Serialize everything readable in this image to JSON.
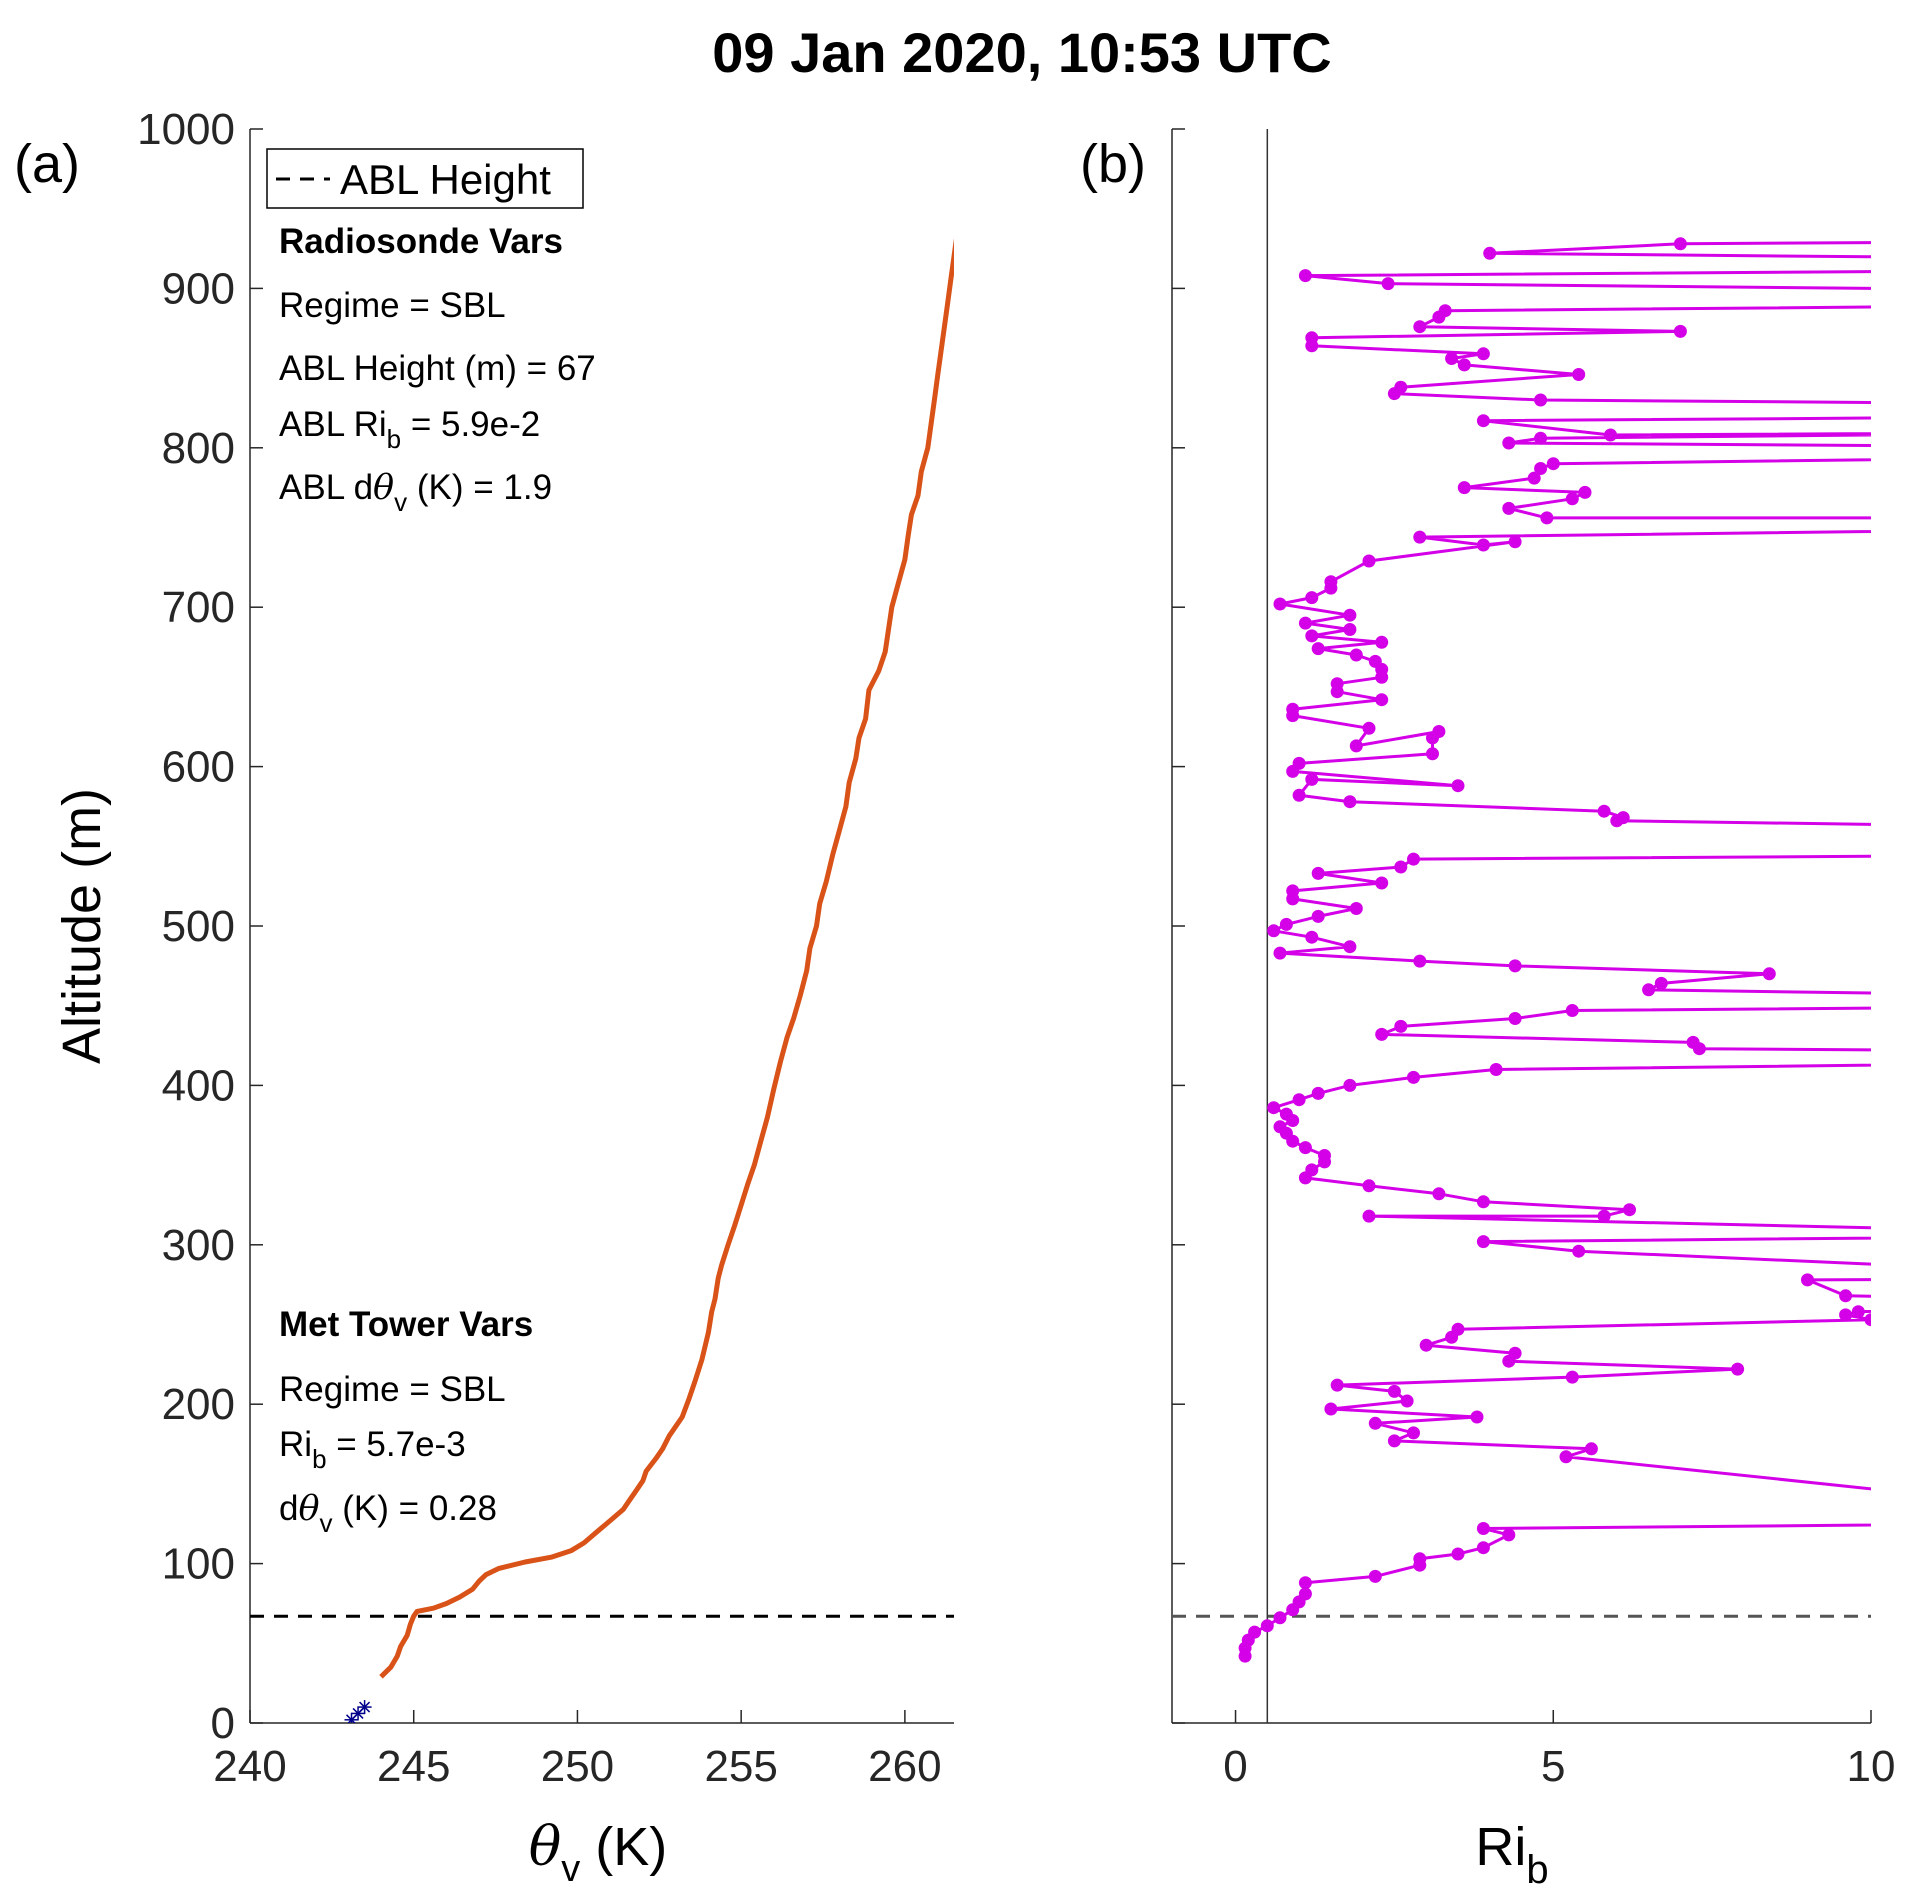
{
  "figure": {
    "title": "09 Jan 2020, 10:53 UTC"
  },
  "chart_data": [
    {
      "type": "line",
      "panel_label": "(a)",
      "xlabel_main": "θ",
      "xlabel_sub": "v",
      "xlabel_unit": " (K)",
      "ylabel": "Altitude (m)",
      "xlim": [
        240,
        261.5
      ],
      "ylim": [
        0,
        1000
      ],
      "xticks": [
        240,
        245,
        250,
        255,
        260
      ],
      "yticks": [
        0,
        100,
        200,
        300,
        400,
        500,
        600,
        700,
        800,
        900,
        1000
      ],
      "abl_height": 67,
      "legend": {
        "label": "ABL Height",
        "position": "top-left"
      },
      "annotations": {
        "radiosonde_header": "Radiosonde Vars",
        "radiosonde_regime": "Regime = SBL",
        "radiosonde_height": "ABL Height (m) = 67",
        "radiosonde_rib_pre": "ABL Ri",
        "radiosonde_rib_sub": "b",
        "radiosonde_rib_post": " = 5.9e-2",
        "radiosonde_dth_pre": "ABL d",
        "radiosonde_dth_theta": "θ",
        "radiosonde_dth_sub": "v",
        "radiosonde_dth_post": " (K) = 1.9",
        "tower_header": "Met Tower Vars",
        "tower_regime": "Regime = SBL",
        "tower_rib_pre": "Ri",
        "tower_rib_sub": "b",
        "tower_rib_post": " = 5.7e-3",
        "tower_dth_pre": "d",
        "tower_dth_theta": "θ",
        "tower_dth_sub": "v",
        "tower_dth_post": " (K) = 0.28"
      },
      "series": [
        {
          "color": "#D95319",
          "points": [
            [
              244.0,
              29
            ],
            [
              244.3,
              35
            ],
            [
              244.5,
              42
            ],
            [
              244.6,
              48
            ],
            [
              244.8,
              55
            ],
            [
              244.9,
              62
            ],
            [
              245.0,
              67
            ],
            [
              245.1,
              70
            ],
            [
              245.6,
              72
            ],
            [
              246.0,
              75
            ],
            [
              246.4,
              79
            ],
            [
              246.8,
              84
            ],
            [
              247.0,
              89
            ],
            [
              247.2,
              93
            ],
            [
              247.6,
              97
            ],
            [
              248.4,
              101
            ],
            [
              249.2,
              104
            ],
            [
              249.8,
              108
            ],
            [
              250.2,
              113
            ],
            [
              250.6,
              120
            ],
            [
              251.0,
              127
            ],
            [
              251.4,
              134
            ],
            [
              251.6,
              140
            ],
            [
              251.8,
              146
            ],
            [
              252.0,
              152
            ],
            [
              252.1,
              158
            ],
            [
              252.4,
              166
            ],
            [
              252.6,
              172
            ],
            [
              252.8,
              180
            ],
            [
              253.2,
              192
            ],
            [
              253.4,
              203
            ],
            [
              253.6,
              215
            ],
            [
              253.8,
              228
            ],
            [
              254.0,
              245
            ],
            [
              254.1,
              258
            ],
            [
              254.2,
              266
            ],
            [
              254.3,
              279
            ],
            [
              254.4,
              287
            ],
            [
              254.6,
              300
            ],
            [
              254.8,
              312
            ],
            [
              255.0,
              325
            ],
            [
              255.2,
              338
            ],
            [
              255.4,
              350
            ],
            [
              255.6,
              365
            ],
            [
              255.8,
              380
            ],
            [
              256.0,
              398
            ],
            [
              256.2,
              415
            ],
            [
              256.4,
              430
            ],
            [
              256.6,
              442
            ],
            [
              256.8,
              456
            ],
            [
              257.0,
              472
            ],
            [
              257.1,
              486
            ],
            [
              257.3,
              500
            ],
            [
              257.4,
              514
            ],
            [
              257.6,
              528
            ],
            [
              257.8,
              545
            ],
            [
              258.0,
              560
            ],
            [
              258.2,
              575
            ],
            [
              258.3,
              590
            ],
            [
              258.5,
              605
            ],
            [
              258.6,
              618
            ],
            [
              258.8,
              630
            ],
            [
              258.9,
              648
            ],
            [
              259.2,
              660
            ],
            [
              259.4,
              672
            ],
            [
              259.5,
              686
            ],
            [
              259.6,
              700
            ],
            [
              259.8,
              715
            ],
            [
              260.0,
              730
            ],
            [
              260.1,
              745
            ],
            [
              260.2,
              758
            ],
            [
              260.4,
              770
            ],
            [
              260.5,
              785
            ],
            [
              260.7,
              800
            ],
            [
              260.8,
              815
            ],
            [
              260.9,
              830
            ],
            [
              261.0,
              845
            ],
            [
              261.1,
              860
            ],
            [
              261.2,
              875
            ],
            [
              261.3,
              890
            ],
            [
              261.4,
              905
            ],
            [
              261.5,
              920
            ],
            [
              261.6,
              935
            ],
            [
              261.8,
              950
            ],
            [
              261.9,
              965
            ],
            [
              262.0,
              980
            ],
            [
              262.1,
              1000
            ]
          ]
        },
        {
          "color": "#00008B",
          "marker": "asterisk",
          "points": [
            [
              243.1,
              2
            ],
            [
              243.3,
              6
            ],
            [
              243.5,
              10
            ]
          ]
        }
      ]
    },
    {
      "type": "line",
      "panel_label": "(b)",
      "xlabel_main": "Ri",
      "xlabel_sub": "b",
      "xlim": [
        -1,
        10
      ],
      "ylim": [
        0,
        1000
      ],
      "xticks": [
        0,
        5,
        10
      ],
      "yticks": [
        0,
        100,
        200,
        300,
        400,
        500,
        600,
        700,
        800,
        900,
        1000
      ],
      "abl_height": 67,
      "critical_ri": 0.5,
      "series": [
        {
          "color": "#D400E8",
          "marker": "dot",
          "points": [
            [
              0.15,
              42
            ],
            [
              0.15,
              47
            ],
            [
              0.2,
              52
            ],
            [
              0.3,
              57
            ],
            [
              0.5,
              61
            ],
            [
              0.7,
              66
            ],
            [
              0.9,
              71
            ],
            [
              1.0,
              76
            ],
            [
              1.1,
              81
            ],
            [
              1.1,
              88
            ],
            [
              2.2,
              92
            ],
            [
              2.9,
              99
            ],
            [
              2.9,
              103
            ],
            [
              3.5,
              106
            ],
            [
              3.9,
              110
            ],
            [
              4.3,
              118
            ],
            [
              3.9,
              122
            ],
            [
              15,
              126
            ],
            [
              5.2,
              167
            ],
            [
              5.6,
              172
            ],
            [
              2.5,
              177
            ],
            [
              2.8,
              182
            ],
            [
              2.2,
              188
            ],
            [
              3.8,
              192
            ],
            [
              1.5,
              197
            ],
            [
              2.7,
              202
            ],
            [
              2.5,
              208
            ],
            [
              1.6,
              212
            ],
            [
              5.3,
              217
            ],
            [
              7.9,
              222
            ],
            [
              4.3,
              227
            ],
            [
              4.4,
              232
            ],
            [
              3.0,
              237
            ],
            [
              3.4,
              242
            ],
            [
              3.5,
              247
            ],
            [
              10,
              253
            ],
            [
              9.6,
              256
            ],
            [
              9.8,
              258
            ],
            [
              15,
              264
            ],
            [
              9.6,
              268
            ],
            [
              9.0,
              278
            ],
            [
              15,
              279
            ],
            [
              5.4,
              296
            ],
            [
              3.9,
              302
            ],
            [
              15,
              306
            ],
            [
              2.1,
              318
            ],
            [
              5.8,
              318
            ],
            [
              6.2,
              322
            ],
            [
              3.9,
              327
            ],
            [
              3.2,
              332
            ],
            [
              2.1,
              337
            ],
            [
              1.1,
              342
            ],
            [
              1.2,
              347
            ],
            [
              1.4,
              352
            ],
            [
              1.4,
              356
            ],
            [
              1.1,
              361
            ],
            [
              0.9,
              365
            ],
            [
              0.8,
              370
            ],
            [
              0.7,
              374
            ],
            [
              0.9,
              378
            ],
            [
              0.8,
              382
            ],
            [
              0.6,
              386
            ],
            [
              1.0,
              391
            ],
            [
              1.3,
              395
            ],
            [
              1.8,
              400
            ],
            [
              2.8,
              405
            ],
            [
              4.1,
              410
            ],
            [
              15,
              415
            ],
            [
              15,
              421
            ],
            [
              7.3,
              423
            ],
            [
              7.2,
              427
            ],
            [
              2.3,
              432
            ],
            [
              2.6,
              437
            ],
            [
              4.4,
              442
            ],
            [
              5.3,
              447
            ],
            [
              15,
              450
            ],
            [
              15,
              455
            ],
            [
              6.5,
              460
            ],
            [
              6.7,
              464
            ],
            [
              8.4,
              470
            ],
            [
              4.4,
              475
            ],
            [
              2.9,
              478
            ],
            [
              0.7,
              483
            ],
            [
              1.8,
              487
            ],
            [
              1.2,
              493
            ],
            [
              0.6,
              497
            ],
            [
              0.8,
              501
            ],
            [
              1.3,
              506
            ],
            [
              1.9,
              511
            ],
            [
              0.9,
              517
            ],
            [
              0.9,
              522
            ],
            [
              2.3,
              527
            ],
            [
              1.3,
              533
            ],
            [
              2.6,
              537
            ],
            [
              2.8,
              542
            ],
            [
              15,
              545
            ],
            [
              15,
              561
            ],
            [
              6.0,
              566
            ],
            [
              6.1,
              568
            ],
            [
              5.8,
              572
            ],
            [
              1.8,
              578
            ],
            [
              1.0,
              582
            ],
            [
              1.2,
              592
            ],
            [
              3.5,
              588
            ],
            [
              0.9,
              597
            ],
            [
              1.0,
              602
            ],
            [
              3.1,
              608
            ],
            [
              3.1,
              618
            ],
            [
              3.2,
              622
            ],
            [
              1.9,
              613
            ],
            [
              2.1,
              624
            ],
            [
              0.9,
              632
            ],
            [
              0.9,
              636
            ],
            [
              2.3,
              642
            ],
            [
              1.6,
              647
            ],
            [
              1.6,
              652
            ],
            [
              2.3,
              656
            ],
            [
              2.3,
              661
            ],
            [
              2.2,
              666
            ],
            [
              1.9,
              670
            ],
            [
              1.3,
              674
            ],
            [
              2.3,
              678
            ],
            [
              1.2,
              682
            ],
            [
              1.8,
              686
            ],
            [
              1.1,
              690
            ],
            [
              1.8,
              695
            ],
            [
              0.7,
              702
            ],
            [
              1.2,
              706
            ],
            [
              1.5,
              712
            ],
            [
              1.5,
              716
            ],
            [
              2.1,
              729
            ],
            [
              4.4,
              741
            ],
            [
              3.9,
              739
            ],
            [
              2.9,
              744
            ],
            [
              15,
              750
            ],
            [
              15,
              756
            ],
            [
              4.9,
              756
            ],
            [
              4.3,
              762
            ],
            [
              5.3,
              768
            ],
            [
              5.5,
              772
            ],
            [
              3.6,
              775
            ],
            [
              4.7,
              781
            ],
            [
              4.8,
              787
            ],
            [
              5.0,
              790
            ],
            [
              15,
              795
            ],
            [
              15,
              800
            ],
            [
              4.3,
              803
            ],
            [
              4.8,
              806
            ],
            [
              15,
              810
            ],
            [
              5.9,
              808
            ],
            [
              3.9,
              817
            ],
            [
              15,
              820
            ],
            [
              15,
              827
            ],
            [
              4.8,
              830
            ],
            [
              2.5,
              834
            ],
            [
              2.6,
              838
            ],
            [
              5.4,
              846
            ],
            [
              3.6,
              852
            ],
            [
              3.4,
              856
            ],
            [
              3.9,
              859
            ],
            [
              1.2,
              864
            ],
            [
              1.2,
              869
            ],
            [
              7.0,
              873
            ],
            [
              2.9,
              876
            ],
            [
              3.2,
              882
            ],
            [
              3.3,
              886
            ],
            [
              15,
              890
            ],
            [
              15,
              898
            ],
            [
              2.4,
              903
            ],
            [
              1.1,
              908
            ],
            [
              15,
              912
            ],
            [
              15,
              918
            ],
            [
              4.0,
              922
            ],
            [
              7.0,
              928
            ],
            [
              15,
              930
            ]
          ]
        }
      ]
    }
  ]
}
